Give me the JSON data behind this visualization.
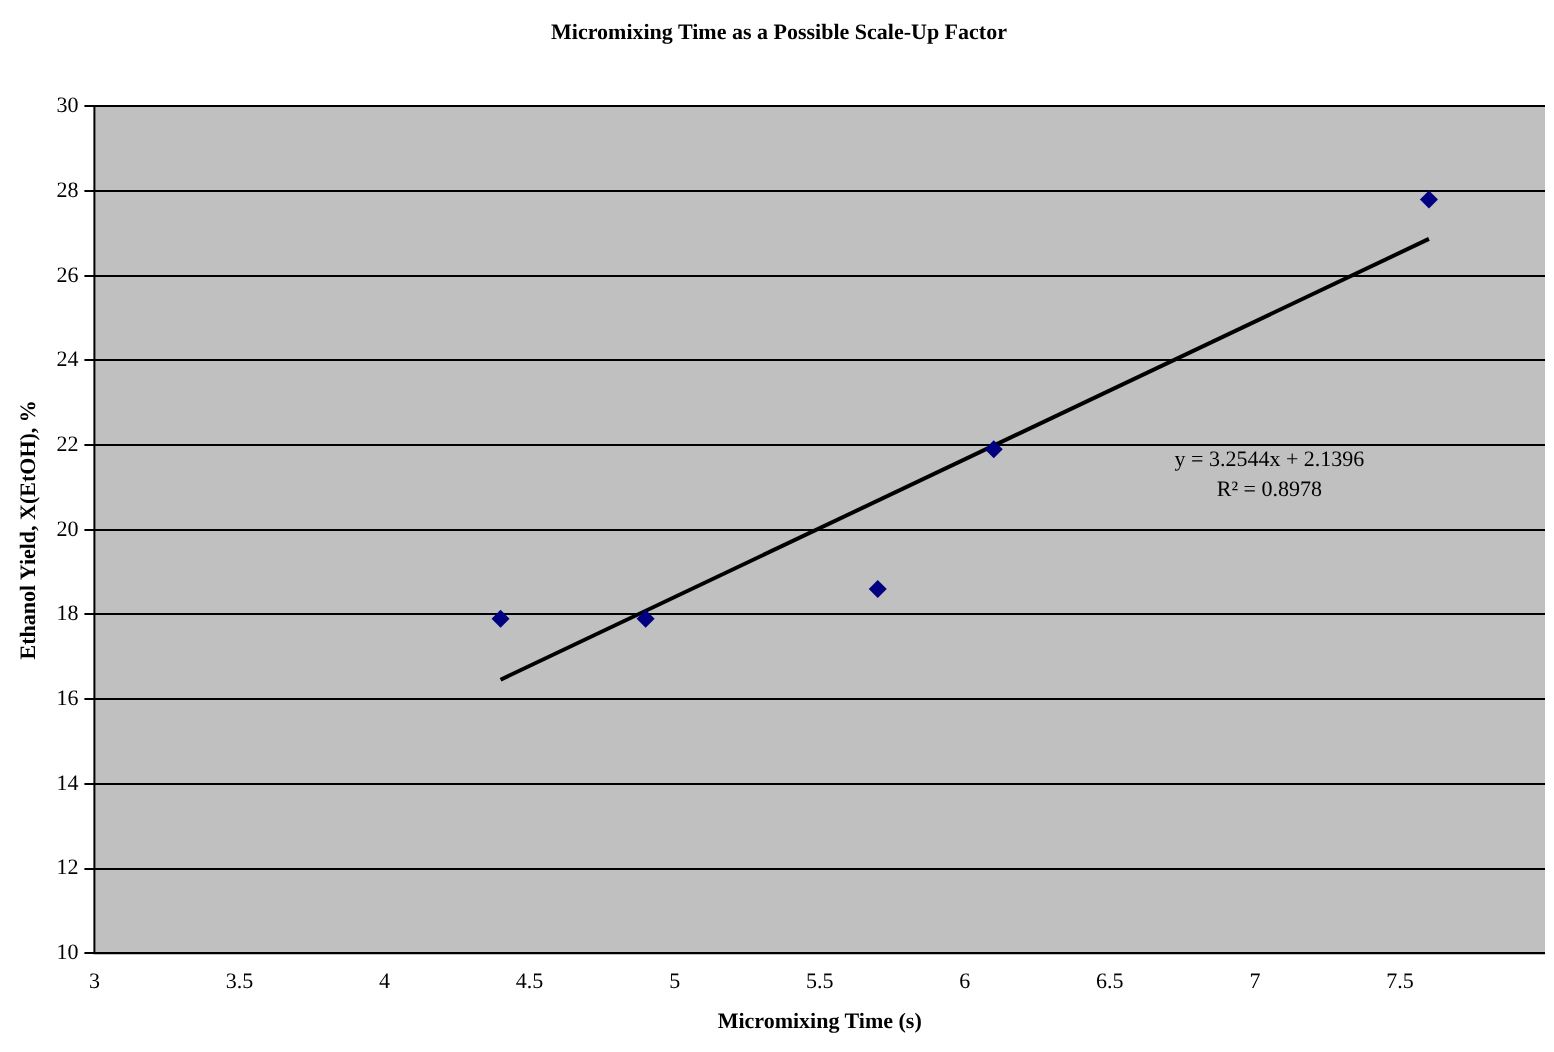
{
  "chart_data": {
    "type": "scatter",
    "title": "Micromixing Time as a Possible Scale-Up Factor",
    "xlabel": "Micromixing Time (s)",
    "ylabel": "Ethanol Yield, X(EtOH), %",
    "xlim": [
      3,
      8
    ],
    "xticks": [
      3,
      3.5,
      4,
      4.5,
      5,
      5.5,
      6,
      6.5,
      7,
      7.5,
      {
        "value": 8,
        "label": null
      }
    ],
    "ylim": [
      10,
      30
    ],
    "yticks": [
      10,
      12,
      14,
      16,
      18,
      20,
      22,
      24,
      26,
      28,
      30
    ],
    "grid": "y",
    "legend": false,
    "series": [
      {
        "color": "#000080",
        "marker": "diamond",
        "x": [
          4.4,
          4.9,
          5.7,
          6.1,
          7.6
        ],
        "values": [
          17.9,
          17.9,
          18.6,
          21.9,
          27.8
        ]
      },
      {
        "type": "line",
        "color": "#000000",
        "marker": "none",
        "line_style": "solid",
        "x": [
          4.4,
          7.6
        ],
        "values": [
          16.46,
          26.87
        ]
      }
    ],
    "annotations": [
      "y = 3.2544x + 2.1396\nR² = 0.8978"
    ]
  }
}
